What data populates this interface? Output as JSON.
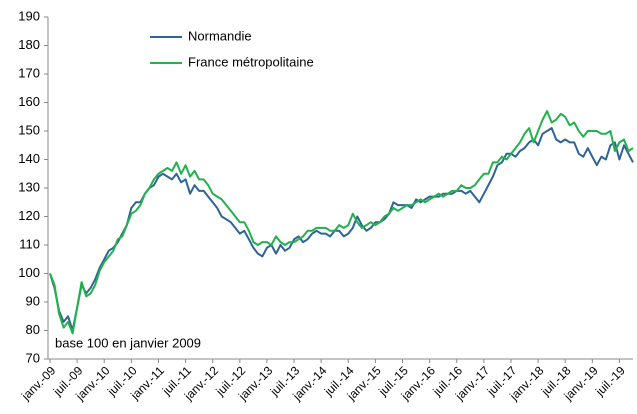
{
  "chart_data": {
    "type": "line",
    "annotation": "base 100 en janvier 2009",
    "categories": [
      "janv.-09",
      null,
      null,
      null,
      null,
      null,
      "juil.-09",
      null,
      null,
      null,
      null,
      null,
      "janv.-10",
      null,
      null,
      null,
      null,
      null,
      "juil.-10",
      null,
      null,
      null,
      null,
      null,
      "janv.-11",
      null,
      null,
      null,
      null,
      null,
      "juil.-11",
      null,
      null,
      null,
      null,
      null,
      "janv.-12",
      null,
      null,
      null,
      null,
      null,
      "juil.-12",
      null,
      null,
      null,
      null,
      null,
      "janv.-13",
      null,
      null,
      null,
      null,
      null,
      "juil.-13",
      null,
      null,
      null,
      null,
      null,
      "janv.-14",
      null,
      null,
      null,
      null,
      null,
      "juil.-14",
      null,
      null,
      null,
      null,
      null,
      "janv.-15",
      null,
      null,
      null,
      null,
      null,
      "juil.-15",
      null,
      null,
      null,
      null,
      null,
      "janv.-16",
      null,
      null,
      null,
      null,
      null,
      "juil.-16",
      null,
      null,
      null,
      null,
      null,
      "janv.-17",
      null,
      null,
      null,
      null,
      null,
      "juil.-17",
      null,
      null,
      null,
      null,
      null,
      "janv.-18",
      null,
      null,
      null,
      null,
      null,
      "juil.-18",
      null,
      null,
      null,
      null,
      null,
      "janv.-19",
      null,
      null,
      null,
      null,
      null,
      "juil.-19",
      null,
      null,
      null
    ],
    "series": [
      {
        "name": "Normandie",
        "color": "#2f6496",
        "values": [
          100,
          95,
          87,
          83,
          85,
          80,
          88,
          96,
          93,
          95,
          98,
          102,
          105,
          108,
          109,
          111,
          114,
          117,
          123,
          125,
          125,
          128,
          130,
          131,
          134,
          135,
          134,
          133,
          135,
          132,
          133,
          128,
          131,
          129,
          129,
          127,
          125,
          123,
          120,
          119,
          118,
          116,
          114,
          115,
          112,
          109,
          107,
          106,
          109,
          110,
          107,
          110,
          108,
          109,
          112,
          113,
          111,
          112,
          114,
          115,
          114,
          114,
          113,
          115,
          115,
          113,
          114,
          116,
          120,
          117,
          115,
          116,
          118,
          118,
          119,
          121,
          125,
          124,
          124,
          124,
          123,
          126,
          125,
          126,
          127,
          127,
          127,
          128,
          128,
          128,
          129,
          129,
          128,
          129,
          127,
          125,
          128,
          131,
          134,
          138,
          139,
          142,
          142,
          141,
          143,
          144,
          146,
          147,
          145,
          149,
          150,
          151,
          147,
          146,
          147,
          146,
          146,
          142,
          141,
          144,
          141,
          138,
          141,
          140,
          145,
          146,
          140,
          145,
          142,
          139
        ]
      },
      {
        "name": "France métropolitaine",
        "color": "#22b14c",
        "values": [
          100,
          96,
          86,
          81,
          83,
          79,
          88,
          97,
          92,
          93,
          96,
          101,
          104,
          106,
          108,
          112,
          113,
          117,
          121,
          122,
          124,
          128,
          130,
          133,
          135,
          136,
          137,
          136,
          139,
          135,
          138,
          134,
          136,
          133,
          133,
          131,
          128,
          127,
          126,
          124,
          122,
          120,
          118,
          118,
          115,
          111,
          110,
          111,
          111,
          110,
          113,
          111,
          110,
          111,
          111,
          112,
          113,
          115,
          115,
          116,
          116,
          116,
          115,
          115,
          117,
          116,
          117,
          121,
          118,
          116,
          117,
          118,
          117,
          118,
          120,
          121,
          123,
          122,
          123,
          124,
          124,
          125,
          126,
          125,
          126,
          127,
          128,
          127,
          128,
          129,
          129,
          131,
          130,
          130,
          131,
          133,
          135,
          135,
          139,
          139,
          141,
          140,
          142,
          144,
          146,
          149,
          151,
          146,
          150,
          154,
          157,
          153,
          154,
          156,
          155,
          152,
          153,
          150,
          148,
          150,
          150,
          150,
          149,
          149,
          150,
          143,
          146,
          147,
          143,
          144
        ]
      }
    ],
    "ylim": [
      70,
      190
    ],
    "yticks": [
      70,
      80,
      90,
      100,
      110,
      120,
      130,
      140,
      150,
      160,
      170,
      180,
      190
    ],
    "legend": "top-left",
    "grid": false
  }
}
